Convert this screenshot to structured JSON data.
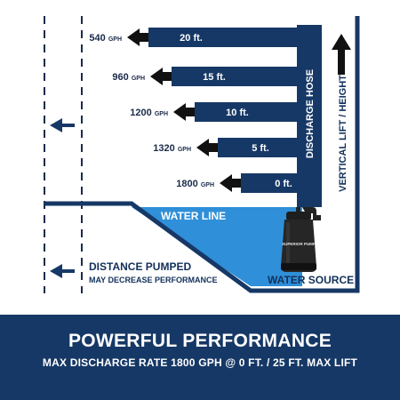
{
  "flow_rows": [
    {
      "gph": "540",
      "height": "20 ft."
    },
    {
      "gph": "960",
      "height": "15 ft."
    },
    {
      "gph": "1200",
      "height": "10 ft."
    },
    {
      "gph": "1320",
      "height": "5 ft."
    },
    {
      "gph": "1800",
      "height": "0 ft."
    }
  ],
  "gph_unit": "GPH",
  "hose_label": "DISCHARGE HOSE",
  "lift_label": "VERTICAL LIFT / HEIGHT",
  "water_line_label": "WATER LINE",
  "water_source_label": "WATER SOURCE",
  "distance_label": "DISTANCE PUMPED",
  "distance_sublabel": "MAY DECREASE PERFORMANCE",
  "pump_brand": "SUPERIOR PUMP",
  "footer_title": "POWERFUL PERFORMANCE",
  "footer_subtitle": "MAX DISCHARGE RATE 1800 GPH @ 0 FT. / 25 FT. MAX LIFT",
  "colors": {
    "navy": "#163866",
    "water": "#2f8fd8",
    "arrow": "#111111",
    "pump": "#222222"
  }
}
